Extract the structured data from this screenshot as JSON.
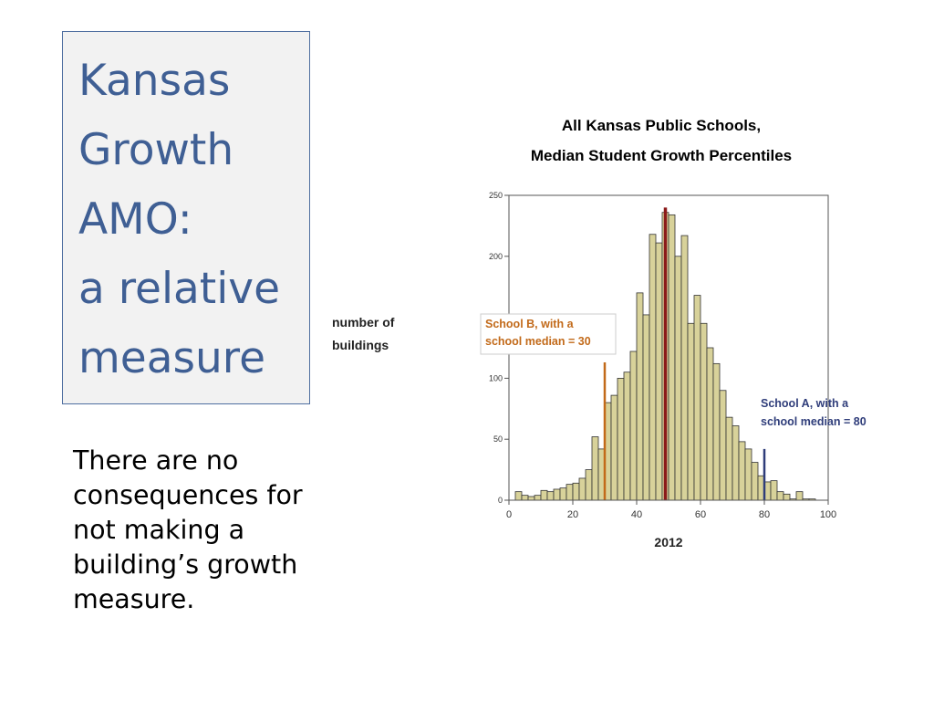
{
  "title": {
    "lines": [
      "Kansas",
      "Growth",
      "AMO:",
      "a relative",
      "measure"
    ]
  },
  "body": {
    "lines": [
      "There are no",
      "consequences for",
      "not making a",
      "building’s growth",
      "measure."
    ]
  },
  "chart_data": {
    "type": "bar",
    "title_lines": [
      "All Kansas Public Schools,",
      "Median Student Growth Percentiles"
    ],
    "ylabel_lines": [
      "number of",
      "buildings"
    ],
    "xlabel": "2012",
    "xlim": [
      0,
      100
    ],
    "ylim": [
      0,
      250
    ],
    "x_ticks": [
      0,
      20,
      40,
      60,
      80,
      100
    ],
    "y_ticks": [
      0,
      50,
      100,
      150,
      200,
      250
    ],
    "bin_width": 2,
    "bins": [
      {
        "x": 2,
        "count": 7
      },
      {
        "x": 4,
        "count": 4
      },
      {
        "x": 6,
        "count": 3
      },
      {
        "x": 8,
        "count": 4
      },
      {
        "x": 10,
        "count": 8
      },
      {
        "x": 12,
        "count": 7
      },
      {
        "x": 14,
        "count": 9
      },
      {
        "x": 16,
        "count": 10
      },
      {
        "x": 18,
        "count": 13
      },
      {
        "x": 20,
        "count": 14
      },
      {
        "x": 22,
        "count": 18
      },
      {
        "x": 24,
        "count": 25
      },
      {
        "x": 26,
        "count": 52
      },
      {
        "x": 28,
        "count": 42
      },
      {
        "x": 30,
        "count": 80
      },
      {
        "x": 32,
        "count": 86
      },
      {
        "x": 34,
        "count": 100
      },
      {
        "x": 36,
        "count": 105
      },
      {
        "x": 38,
        "count": 122
      },
      {
        "x": 40,
        "count": 170
      },
      {
        "x": 42,
        "count": 152
      },
      {
        "x": 44,
        "count": 218
      },
      {
        "x": 46,
        "count": 211
      },
      {
        "x": 48,
        "count": 236
      },
      {
        "x": 50,
        "count": 234
      },
      {
        "x": 52,
        "count": 200
      },
      {
        "x": 54,
        "count": 217
      },
      {
        "x": 56,
        "count": 145
      },
      {
        "x": 58,
        "count": 168
      },
      {
        "x": 60,
        "count": 145
      },
      {
        "x": 62,
        "count": 125
      },
      {
        "x": 64,
        "count": 112
      },
      {
        "x": 66,
        "count": 90
      },
      {
        "x": 68,
        "count": 68
      },
      {
        "x": 70,
        "count": 61
      },
      {
        "x": 72,
        "count": 48
      },
      {
        "x": 74,
        "count": 42
      },
      {
        "x": 76,
        "count": 31
      },
      {
        "x": 78,
        "count": 20
      },
      {
        "x": 80,
        "count": 15
      },
      {
        "x": 82,
        "count": 16
      },
      {
        "x": 84,
        "count": 7
      },
      {
        "x": 86,
        "count": 5
      },
      {
        "x": 88,
        "count": 1
      },
      {
        "x": 90,
        "count": 7
      },
      {
        "x": 92,
        "count": 1
      },
      {
        "x": 94,
        "count": 1
      }
    ],
    "bar_color": "#d8d29a",
    "markers": [
      {
        "name": "median",
        "x": 49,
        "color": "#8b1a1a",
        "top": 240
      },
      {
        "name": "school-b",
        "x": 30,
        "color": "#c26a1a",
        "top": 113,
        "label_lines": [
          "School B, with a",
          "school median = 30"
        ]
      },
      {
        "name": "school-a",
        "x": 80,
        "color": "#2f3d7a",
        "top": 42,
        "label_lines": [
          "School A, with a",
          "school median = 80"
        ]
      }
    ]
  }
}
